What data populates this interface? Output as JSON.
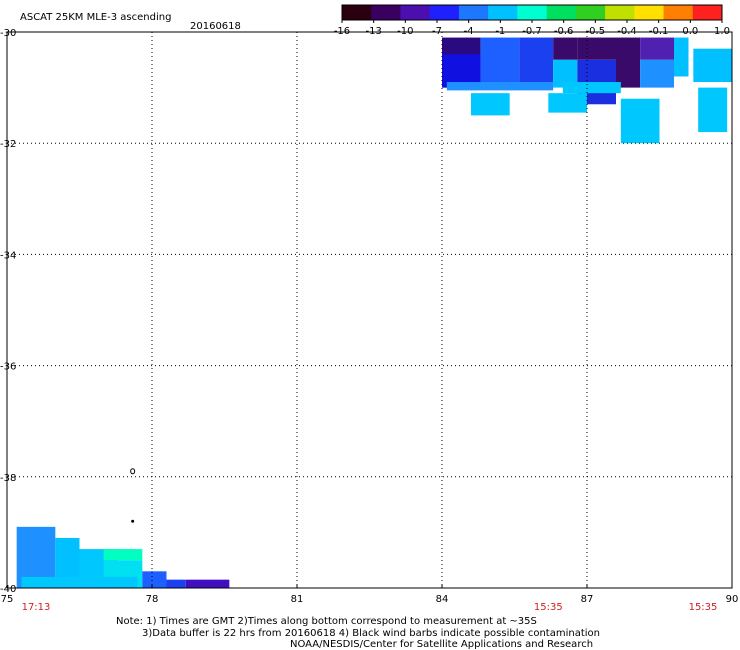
{
  "header": {
    "title": "ASCAT 25KM MLE-3 ascending",
    "date": "20160618"
  },
  "colorbar": {
    "labels": [
      "-16",
      "-13",
      "-10",
      "-7",
      "-4",
      "-1",
      "-0.7",
      "-0.6",
      "-0.5",
      "-0.4",
      "-0.1",
      "0.0",
      "1.0"
    ],
    "colors": [
      "#2a0010",
      "#3a0060",
      "#4b0fb0",
      "#2020ff",
      "#1e78ff",
      "#00c0ff",
      "#00ffd0",
      "#00e060",
      "#30d020",
      "#c0e000",
      "#ffe000",
      "#ff8000",
      "#ff2020"
    ]
  },
  "axes": {
    "lat_labels": [
      "-30",
      "-32",
      "-34",
      "-36",
      "-38",
      "-40"
    ],
    "lon_labels": [
      "75",
      "78",
      "81",
      "84",
      "87",
      "90"
    ],
    "lat_range": [
      -40,
      -30
    ],
    "lon_range": [
      75,
      90
    ],
    "grid": true
  },
  "times": [
    {
      "label": "17:13",
      "lon": 75.6
    },
    {
      "label": "15:35",
      "lon": 86.2
    },
    {
      "label": "15:35",
      "lon": 89.4
    }
  ],
  "footer": {
    "line1": "Note: 1) Times are GMT 2)Times along bottom correspond to measurement at ~35S",
    "line2": "3)Data buffer is 22 hrs from 20160618 4) Black wind barbs indicate possible contamination",
    "line3": "NOAA/NESDIS/Center for Satellite Applications and Research"
  },
  "swaths": [
    {
      "lon": 84.0,
      "lat": -30.1,
      "w": 0.8,
      "h": 0.9,
      "color": "#2a0a80"
    },
    {
      "lon": 84.0,
      "lat": -30.4,
      "w": 0.8,
      "h": 0.6,
      "color": "#1010e0"
    },
    {
      "lon": 84.8,
      "lat": -30.1,
      "w": 0.8,
      "h": 0.9,
      "color": "#1e60ff"
    },
    {
      "lon": 85.6,
      "lat": -30.1,
      "w": 0.7,
      "h": 0.9,
      "color": "#1a40f0"
    },
    {
      "lon": 86.3,
      "lat": -30.1,
      "w": 0.5,
      "h": 0.4,
      "color": "#3a0a6a"
    },
    {
      "lon": 86.3,
      "lat": -30.5,
      "w": 0.5,
      "h": 0.5,
      "color": "#00c0ff"
    },
    {
      "lon": 86.8,
      "lat": -30.1,
      "w": 0.8,
      "h": 0.4,
      "color": "#3a0a6a"
    },
    {
      "lon": 86.8,
      "lat": -30.5,
      "w": 0.8,
      "h": 0.8,
      "color": "#1a30e0"
    },
    {
      "lon": 87.6,
      "lat": -30.1,
      "w": 0.5,
      "h": 0.9,
      "color": "#3a0a6a"
    },
    {
      "lon": 88.1,
      "lat": -30.1,
      "w": 0.7,
      "h": 0.4,
      "color": "#5020b0"
    },
    {
      "lon": 88.1,
      "lat": -30.5,
      "w": 0.7,
      "h": 0.5,
      "color": "#1e90ff"
    },
    {
      "lon": 88.8,
      "lat": -30.1,
      "w": 0.3,
      "h": 0.7,
      "color": "#00c0ff"
    },
    {
      "lon": 89.2,
      "lat": -30.3,
      "w": 0.8,
      "h": 0.6,
      "color": "#00c0ff"
    },
    {
      "lon": 84.1,
      "lat": -30.9,
      "w": 2.2,
      "h": 0.15,
      "color": "#1e90ff"
    },
    {
      "lon": 84.6,
      "lat": -31.1,
      "w": 0.8,
      "h": 0.4,
      "color": "#00c8ff"
    },
    {
      "lon": 86.2,
      "lat": -31.1,
      "w": 0.8,
      "h": 0.35,
      "color": "#00c8ff"
    },
    {
      "lon": 86.5,
      "lat": -30.9,
      "w": 1.2,
      "h": 0.2,
      "color": "#00c8ff"
    },
    {
      "lon": 87.7,
      "lat": -31.2,
      "w": 0.8,
      "h": 0.8,
      "color": "#00c8ff"
    },
    {
      "lon": 89.3,
      "lat": -31.0,
      "w": 0.6,
      "h": 0.8,
      "color": "#00c8ff"
    },
    {
      "lon": 75.2,
      "lat": -38.9,
      "w": 0.8,
      "h": 1.1,
      "color": "#1e90ff"
    },
    {
      "lon": 76.0,
      "lat": -39.1,
      "w": 0.5,
      "h": 0.9,
      "color": "#00c0ff"
    },
    {
      "lon": 76.5,
      "lat": -39.3,
      "w": 0.8,
      "h": 0.7,
      "color": "#00c8ff"
    },
    {
      "lon": 77.0,
      "lat": -39.3,
      "w": 0.8,
      "h": 0.2,
      "color": "#00ffc0"
    },
    {
      "lon": 77.0,
      "lat": -39.5,
      "w": 0.8,
      "h": 0.5,
      "color": "#00e0f0"
    },
    {
      "lon": 77.8,
      "lat": -39.7,
      "w": 0.5,
      "h": 0.3,
      "color": "#1e60ff"
    },
    {
      "lon": 78.3,
      "lat": -39.85,
      "w": 0.4,
      "h": 0.15,
      "color": "#1a40f0"
    },
    {
      "lon": 78.7,
      "lat": -39.85,
      "w": 0.9,
      "h": 0.15,
      "color": "#4010c0"
    },
    {
      "lon": 75.3,
      "lat": -39.8,
      "w": 2.4,
      "h": 0.2,
      "color": "#00c8ff"
    }
  ],
  "marks": [
    {
      "lon": 77.6,
      "lat": -37.9
    },
    {
      "lon": 77.6,
      "lat": -38.8
    }
  ]
}
